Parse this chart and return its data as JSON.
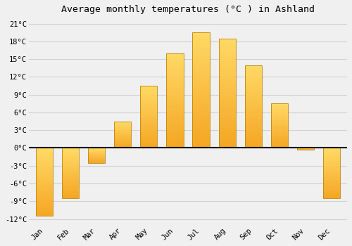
{
  "months": [
    "Jan",
    "Feb",
    "Mar",
    "Apr",
    "May",
    "Jun",
    "Jul",
    "Aug",
    "Sep",
    "Oct",
    "Nov",
    "Dec"
  ],
  "values": [
    -11.5,
    -8.5,
    -2.5,
    4.5,
    10.5,
    16.0,
    19.5,
    18.5,
    14.0,
    7.5,
    -0.3,
    -8.5
  ],
  "bar_color_bottom": "#F5A623",
  "bar_color_top": "#FFD966",
  "bar_edge_color": "#b8860b",
  "title": "Average monthly temperatures (°C ) in Ashland",
  "ylim": [
    -13,
    22
  ],
  "yticks": [
    -12,
    -9,
    -6,
    -3,
    0,
    3,
    6,
    9,
    12,
    15,
    18,
    21
  ],
  "background_color": "#f0f0f0",
  "grid_color": "#d0d0d0",
  "title_fontsize": 9.5,
  "tick_fontsize": 7.5,
  "font_family": "monospace"
}
